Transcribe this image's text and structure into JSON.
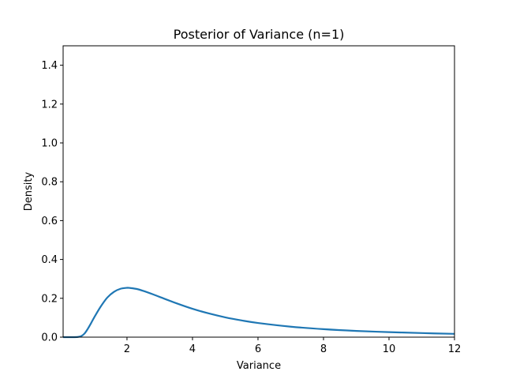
{
  "chart_data": {
    "type": "line",
    "title": "Posterior of Variance (n=1)",
    "xlabel": "Variance",
    "ylabel": "Density",
    "xlim": [
      0.05,
      12
    ],
    "ylim": [
      0,
      1.5
    ],
    "x_ticks": [
      2,
      4,
      6,
      8,
      10,
      12
    ],
    "x_tick_labels": [
      "2",
      "4",
      "6",
      "8",
      "10",
      "12"
    ],
    "y_ticks": [
      0.0,
      0.2,
      0.4,
      0.6,
      0.8,
      1.0,
      1.2,
      1.4
    ],
    "y_tick_labels": [
      "0.0",
      "0.2",
      "0.4",
      "0.6",
      "0.8",
      "1.0",
      "1.2",
      "1.4"
    ],
    "grid": false,
    "line_color": "#1f77b4",
    "series": [
      {
        "x": [
          0.05,
          0.3,
          0.5,
          0.6,
          0.7,
          0.8,
          0.9,
          1.0,
          1.2,
          1.4,
          1.6,
          1.8,
          2.0,
          2.1,
          2.3,
          2.5,
          2.8,
          3.0,
          3.5,
          4.0,
          4.5,
          5.0,
          5.5,
          6.0,
          7.0,
          8.0,
          9.0,
          10.0,
          11.0,
          12.0
        ],
        "y": [
          0.0,
          0.0,
          0.001,
          0.005,
          0.018,
          0.042,
          0.071,
          0.102,
          0.158,
          0.204,
          0.233,
          0.249,
          0.254,
          0.253,
          0.248,
          0.238,
          0.22,
          0.207,
          0.175,
          0.146,
          0.122,
          0.102,
          0.086,
          0.073,
          0.054,
          0.041,
          0.032,
          0.026,
          0.021,
          0.017
        ]
      }
    ]
  }
}
